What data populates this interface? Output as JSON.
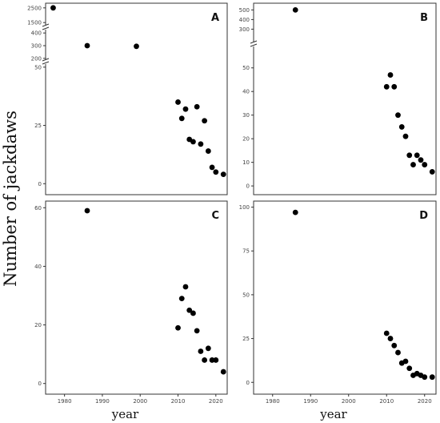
{
  "chart_data": [
    {
      "type": "scatter",
      "panel": "A",
      "ylabel": "Number of jackdaws",
      "xlabel": "",
      "xlim": [
        1975,
        2023
      ],
      "xticks": [],
      "y_segments": [
        {
          "range": [
            -3,
            52
          ],
          "ticks": [
            "0",
            "25",
            "50"
          ]
        },
        {
          "range": [
            180,
            420
          ],
          "ticks": [
            "200",
            "300",
            "400"
          ]
        },
        {
          "range": [
            1400,
            2600
          ],
          "ticks": [
            "1500",
            "2500"
          ]
        }
      ],
      "points": [
        {
          "x": 1977,
          "y": 2500
        },
        {
          "x": 1986,
          "y": 300
        },
        {
          "x": 1999,
          "y": 295
        },
        {
          "x": 2010,
          "y": 35
        },
        {
          "x": 2011,
          "y": 28
        },
        {
          "x": 2012,
          "y": 32
        },
        {
          "x": 2013,
          "y": 19
        },
        {
          "x": 2014,
          "y": 18
        },
        {
          "x": 2015,
          "y": 33
        },
        {
          "x": 2016,
          "y": 17
        },
        {
          "x": 2017,
          "y": 27
        },
        {
          "x": 2018,
          "y": 14
        },
        {
          "x": 2019,
          "y": 7
        },
        {
          "x": 2020,
          "y": 5
        },
        {
          "x": 2022,
          "y": 4
        }
      ]
    },
    {
      "type": "scatter",
      "panel": "B",
      "xlabel": "",
      "xlim": [
        1975,
        2023
      ],
      "xticks": [],
      "y_segments": [
        {
          "range": [
            -2,
            55
          ],
          "ticks": [
            "0",
            "10",
            "20",
            "30",
            "40",
            "50"
          ]
        },
        {
          "range": [
            270,
            520
          ],
          "ticks": [
            "300",
            "400",
            "500"
          ]
        }
      ],
      "points": [
        {
          "x": 1986,
          "y": 500
        },
        {
          "x": 2010,
          "y": 42
        },
        {
          "x": 2011,
          "y": 47
        },
        {
          "x": 2012,
          "y": 42
        },
        {
          "x": 2013,
          "y": 30
        },
        {
          "x": 2014,
          "y": 25
        },
        {
          "x": 2015,
          "y": 21
        },
        {
          "x": 2016,
          "y": 13
        },
        {
          "x": 2017,
          "y": 9
        },
        {
          "x": 2018,
          "y": 13
        },
        {
          "x": 2019,
          "y": 11
        },
        {
          "x": 2020,
          "y": 9
        },
        {
          "x": 2022,
          "y": 6
        }
      ]
    },
    {
      "type": "scatter",
      "panel": "C",
      "xlabel": "year",
      "xlim": [
        1975,
        2023
      ],
      "xticks": [
        "1980",
        "1990",
        "2000",
        "2010",
        "2020"
      ],
      "y_segments": [
        {
          "range": [
            -2,
            62
          ],
          "ticks": [
            "0",
            "20",
            "40",
            "60"
          ]
        }
      ],
      "points": [
        {
          "x": 1986,
          "y": 59
        },
        {
          "x": 2010,
          "y": 19
        },
        {
          "x": 2011,
          "y": 29
        },
        {
          "x": 2012,
          "y": 33
        },
        {
          "x": 2013,
          "y": 25
        },
        {
          "x": 2014,
          "y": 24
        },
        {
          "x": 2015,
          "y": 18
        },
        {
          "x": 2016,
          "y": 11
        },
        {
          "x": 2017,
          "y": 8
        },
        {
          "x": 2018,
          "y": 12
        },
        {
          "x": 2019,
          "y": 8
        },
        {
          "x": 2020,
          "y": 8
        },
        {
          "x": 2022,
          "y": 4
        }
      ]
    },
    {
      "type": "scatter",
      "panel": "D",
      "xlabel": "year",
      "xlim": [
        1975,
        2023
      ],
      "xticks": [
        "1980",
        "1990",
        "2000",
        "2010",
        "2020"
      ],
      "y_segments": [
        {
          "range": [
            -4,
            103
          ],
          "ticks": [
            "0",
            "25",
            "50",
            "75",
            "100"
          ]
        }
      ],
      "points": [
        {
          "x": 1986,
          "y": 97
        },
        {
          "x": 2010,
          "y": 28
        },
        {
          "x": 2011,
          "y": 25
        },
        {
          "x": 2012,
          "y": 21
        },
        {
          "x": 2013,
          "y": 17
        },
        {
          "x": 2014,
          "y": 11
        },
        {
          "x": 2015,
          "y": 12
        },
        {
          "x": 2016,
          "y": 8
        },
        {
          "x": 2017,
          "y": 4
        },
        {
          "x": 2018,
          "y": 5
        },
        {
          "x": 2019,
          "y": 4
        },
        {
          "x": 2020,
          "y": 3
        },
        {
          "x": 2022,
          "y": 3
        }
      ]
    }
  ],
  "colors": {
    "points": "#000000",
    "frame": "#333333",
    "ticks": "#444444"
  }
}
